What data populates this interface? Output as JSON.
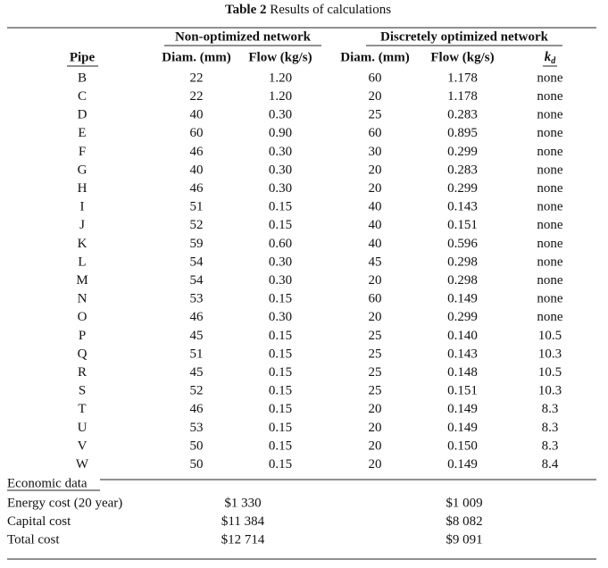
{
  "table": {
    "title": {
      "label": "Table 2",
      "text": "Results of calculations"
    },
    "groups": [
      "Non-optimized network",
      "Discretely optimized network"
    ],
    "columns": [
      "Pipe",
      "Diam. (mm)",
      "Flow (kg/s)",
      "Diam. (mm)",
      "Flow (kg/s)",
      {
        "main": "k",
        "sub": "d"
      }
    ],
    "rows": [
      [
        "B",
        "22",
        "1.20",
        "60",
        "1.178",
        "none"
      ],
      [
        "C",
        "22",
        "1.20",
        "20",
        "1.178",
        "none"
      ],
      [
        "D",
        "40",
        "0.30",
        "25",
        "0.283",
        "none"
      ],
      [
        "E",
        "60",
        "0.90",
        "60",
        "0.895",
        "none"
      ],
      [
        "F",
        "46",
        "0.30",
        "30",
        "0.299",
        "none"
      ],
      [
        "G",
        "40",
        "0.30",
        "20",
        "0.283",
        "none"
      ],
      [
        "H",
        "46",
        "0.30",
        "20",
        "0.299",
        "none"
      ],
      [
        "I",
        "51",
        "0.15",
        "40",
        "0.143",
        "none"
      ],
      [
        "J",
        "52",
        "0.15",
        "40",
        "0.151",
        "none"
      ],
      [
        "K",
        "59",
        "0.60",
        "40",
        "0.596",
        "none"
      ],
      [
        "L",
        "54",
        "0.30",
        "45",
        "0.298",
        "none"
      ],
      [
        "M",
        "54",
        "0.30",
        "20",
        "0.298",
        "none"
      ],
      [
        "N",
        "53",
        "0.15",
        "60",
        "0.149",
        "none"
      ],
      [
        "O",
        "46",
        "0.30",
        "20",
        "0.299",
        "none"
      ],
      [
        "P",
        "45",
        "0.15",
        "25",
        "0.140",
        "10.5"
      ],
      [
        "Q",
        "51",
        "0.15",
        "25",
        "0.143",
        "10.3"
      ],
      [
        "R",
        "45",
        "0.15",
        "25",
        "0.148",
        "10.5"
      ],
      [
        "S",
        "52",
        "0.15",
        "25",
        "0.151",
        "10.3"
      ],
      [
        "T",
        "46",
        "0.15",
        "20",
        "0.149",
        "8.3"
      ],
      [
        "U",
        "53",
        "0.15",
        "20",
        "0.149",
        "8.3"
      ],
      [
        "V",
        "50",
        "0.15",
        "20",
        "0.150",
        "8.3"
      ],
      [
        "W",
        "50",
        "0.15",
        "20",
        "0.149",
        "8.4"
      ]
    ],
    "economic": {
      "heading": "Economic data",
      "rows": [
        [
          "Energy cost (20 year)",
          "$1 330",
          "$1 009"
        ],
        [
          "Capital cost",
          "$11 384",
          "$8 082"
        ],
        [
          "Total cost",
          "$12 714",
          "$9 091"
        ]
      ]
    }
  }
}
